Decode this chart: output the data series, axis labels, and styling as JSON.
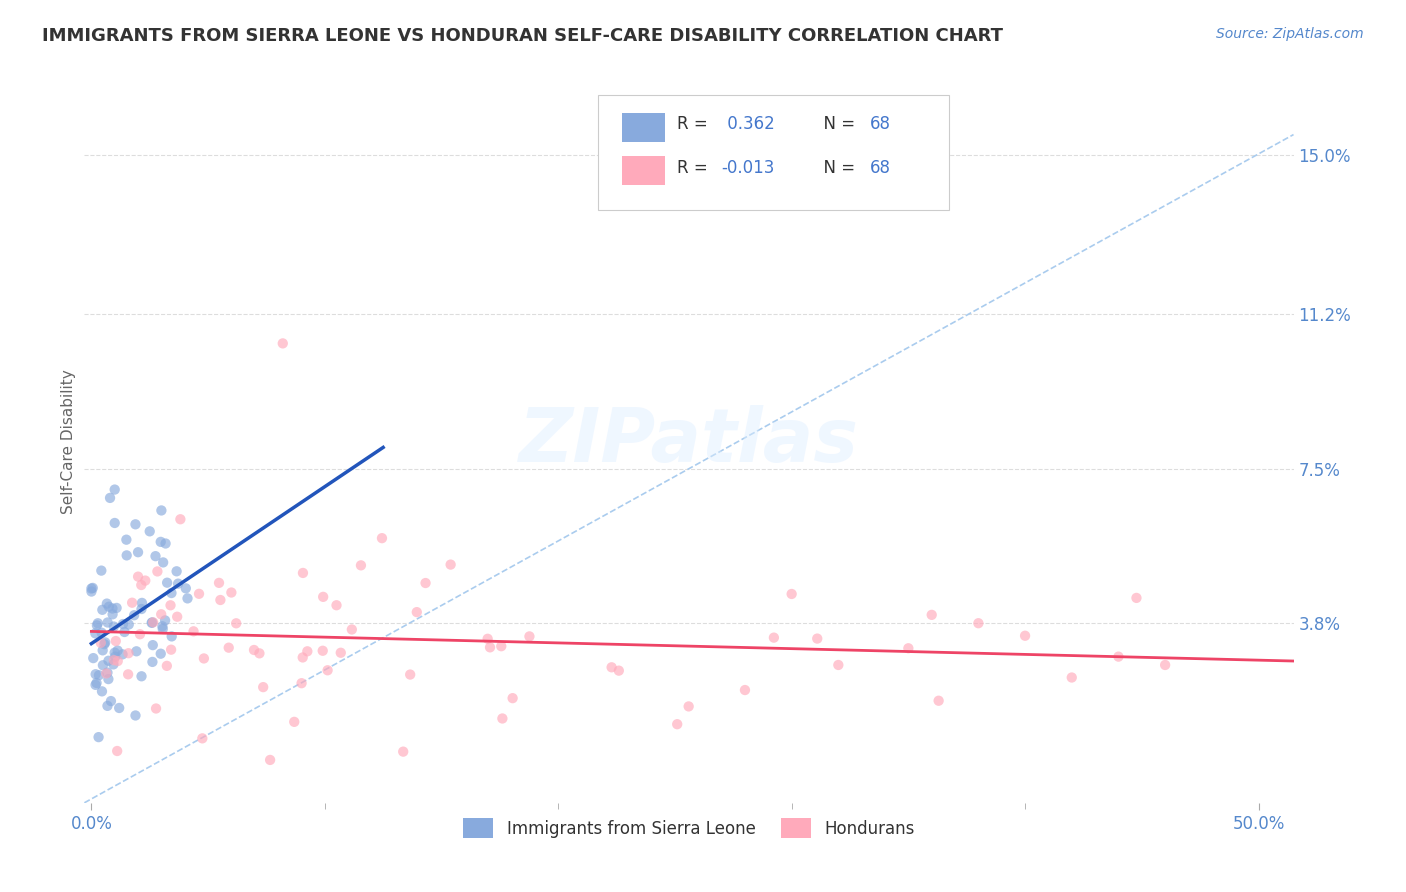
{
  "title": "IMMIGRANTS FROM SIERRA LEONE VS HONDURAN SELF-CARE DISABILITY CORRELATION CHART",
  "source": "Source: ZipAtlas.com",
  "ylabel": "Self-Care Disability",
  "xlim": [
    -0.003,
    0.515
  ],
  "ylim": [
    -0.005,
    0.168
  ],
  "xtick_positions": [
    0.0,
    0.5
  ],
  "xtick_labels": [
    "0.0%",
    "50.0%"
  ],
  "yticks": [
    0.038,
    0.075,
    0.112,
    0.15
  ],
  "ytick_labels": [
    "3.8%",
    "7.5%",
    "11.2%",
    "15.0%"
  ],
  "legend_label1": "Immigrants from Sierra Leone",
  "legend_label2": "Hondurans",
  "color_blue": "#88AADD",
  "color_pink": "#FFAABB",
  "color_trendline_blue": "#2255BB",
  "color_trendline_pink": "#EE4466",
  "color_diag": "#AACCEE",
  "title_color": "#333333",
  "axis_label_color": "#5588CC",
  "tick_color": "#5588CC",
  "background_color": "#FFFFFF",
  "grid_color": "#DDDDDD",
  "n_blue": 68,
  "n_pink": 68,
  "seed": 7,
  "scatter_alpha": 0.65,
  "scatter_size": 55,
  "r_value_color": "#4477CC",
  "n_value_color": "#4477CC"
}
